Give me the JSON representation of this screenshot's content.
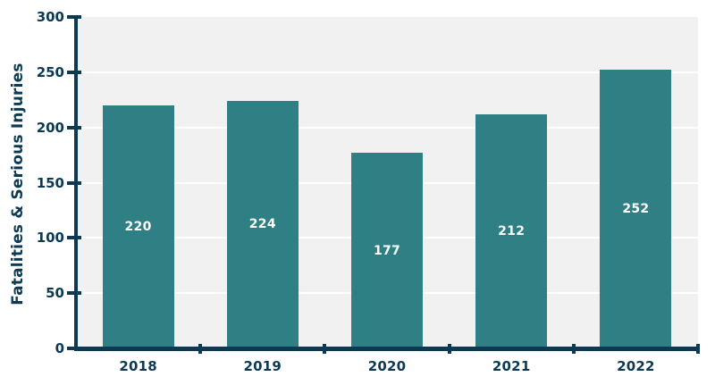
{
  "chart_data": {
    "type": "bar",
    "title": "",
    "categories": [
      "2018",
      "2019",
      "2020",
      "2021",
      "2022"
    ],
    "values": [
      220,
      224,
      177,
      212,
      252
    ],
    "xlabel": "",
    "ylabel": "Fatalities & Serious Injuries",
    "ylim": [
      0,
      300
    ],
    "yticks": [
      0,
      50,
      100,
      150,
      200,
      250,
      300
    ],
    "grid": "horizontal",
    "legend_position": "none",
    "value_labels": "inside bar, centered, white",
    "colors": {
      "bar": "#2e8084",
      "axis_and_text": "#0d3a52",
      "plot_background": "#f1f1f2",
      "gridline": "#ffffff",
      "value_label_text": "#ffffff",
      "page_background": "#ffffff"
    }
  }
}
